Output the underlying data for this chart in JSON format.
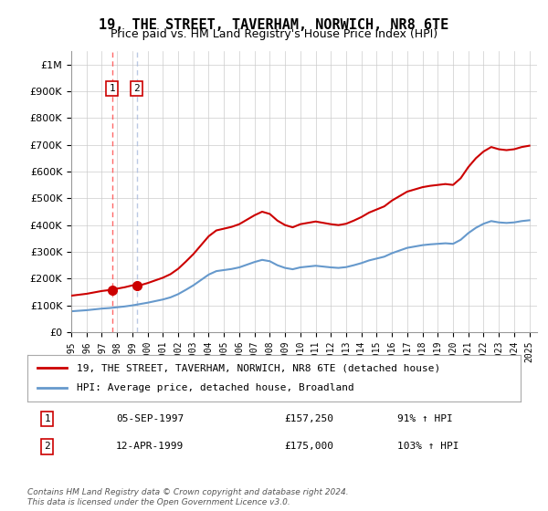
{
  "title": "19, THE STREET, TAVERHAM, NORWICH, NR8 6TE",
  "subtitle": "Price paid vs. HM Land Registry's House Price Index (HPI)",
  "legend_line1": "19, THE STREET, TAVERHAM, NORWICH, NR8 6TE (detached house)",
  "legend_line2": "HPI: Average price, detached house, Broadland",
  "footer1": "Contains HM Land Registry data © Crown copyright and database right 2024.",
  "footer2": "This data is licensed under the Open Government Licence v3.0.",
  "sale1_label": "1",
  "sale1_date": "05-SEP-1997",
  "sale1_price": "£157,250",
  "sale1_hpi": "91% ↑ HPI",
  "sale2_label": "2",
  "sale2_date": "12-APR-1999",
  "sale2_price": "£175,000",
  "sale2_hpi": "103% ↑ HPI",
  "sale1_year": 1997.67,
  "sale1_value": 157250,
  "sale2_year": 1999.28,
  "sale2_value": 175000,
  "hpi_color": "#6699cc",
  "price_color": "#cc0000",
  "vline1_color": "#ff4444",
  "vline2_color": "#aabbdd",
  "background_color": "#ffffff",
  "grid_color": "#cccccc",
  "ylim": [
    0,
    1050000
  ],
  "xlim_start": 1995.0,
  "xlim_end": 2025.5
}
